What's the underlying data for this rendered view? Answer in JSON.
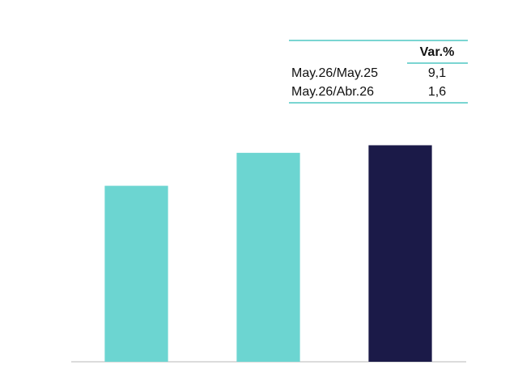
{
  "chart_data": {
    "type": "bar",
    "categories": [
      null,
      null,
      null
    ],
    "values": [
      100,
      107.4,
      109.1
    ],
    "colors": [
      "#6cd5d1",
      "#6cd5d1",
      "#1b1a48"
    ],
    "ylim": [
      60.5,
      115
    ],
    "table": {
      "header": "Var.%",
      "rows": [
        [
          "May.26/May.25",
          "9,1"
        ],
        [
          "May.26/Abr.26",
          "1,6"
        ]
      ]
    }
  }
}
